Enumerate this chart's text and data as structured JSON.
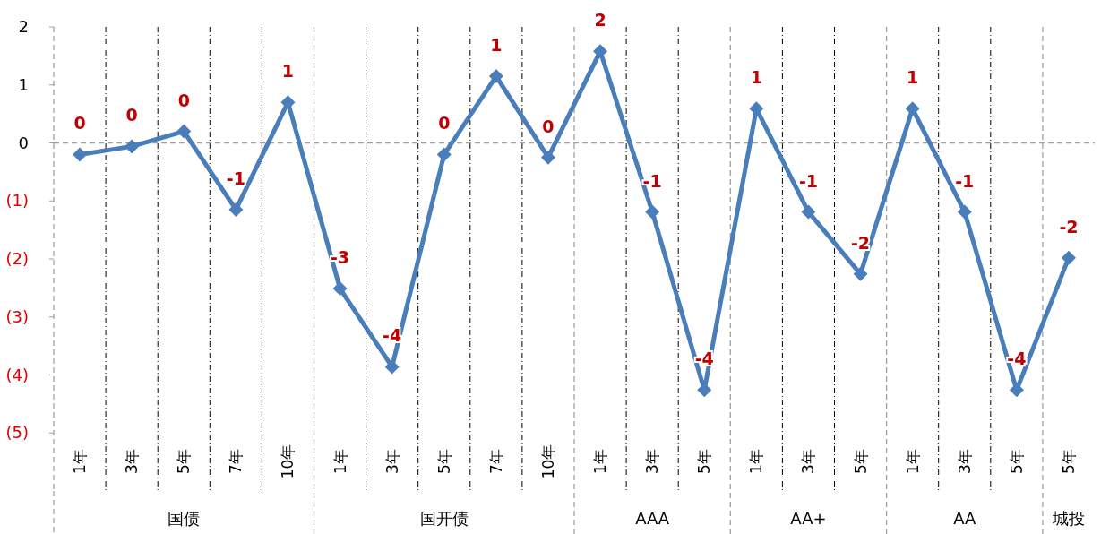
{
  "chart_data": {
    "type": "line",
    "categories": [
      "1年",
      "3年",
      "5年",
      "7年",
      "10年",
      "1年",
      "3年",
      "5年",
      "7年",
      "10年",
      "1年",
      "3年",
      "5年",
      "1年",
      "3年",
      "5年",
      "1年",
      "3年",
      "5年",
      "5年"
    ],
    "series": [
      {
        "color": "#4a7ebb",
        "values": [
          -0.2,
          -0.06,
          0.2,
          -1.15,
          0.7,
          -2.51,
          -3.86,
          -0.2,
          1.15,
          -0.25,
          1.58,
          -1.19,
          -4.26,
          0.59,
          -1.19,
          -2.26,
          0.59,
          -1.19,
          -4.26,
          -1.98
        ],
        "value_labels": [
          "0",
          "0",
          "0",
          "-1",
          "1",
          "-3",
          "-4",
          "0",
          "1",
          "0",
          "2",
          "-1",
          "-4",
          "1",
          "-1",
          "-2",
          "1",
          "-1",
          "-4",
          "-2"
        ]
      }
    ],
    "annotations": [
      "国债",
      "国开债",
      "AAA",
      "AA+",
      "AA",
      "城投"
    ],
    "ylim": [
      -6,
      2
    ],
    "yticks": [
      2,
      1,
      0,
      {
        "value": -1,
        "label": "(1)"
      },
      {
        "value": -2,
        "label": "(2)"
      },
      {
        "value": -3,
        "label": "(3)"
      },
      {
        "value": -4,
        "label": "(4)"
      },
      {
        "value": -5,
        "label": "(5)"
      }
    ],
    "ref_lines": [
      {
        "axis": "y",
        "value": 0,
        "color": "#a0a0a0",
        "line_style": "dashed"
      }
    ],
    "grid": "x",
    "marker": "diamond",
    "line_style": "solid"
  }
}
